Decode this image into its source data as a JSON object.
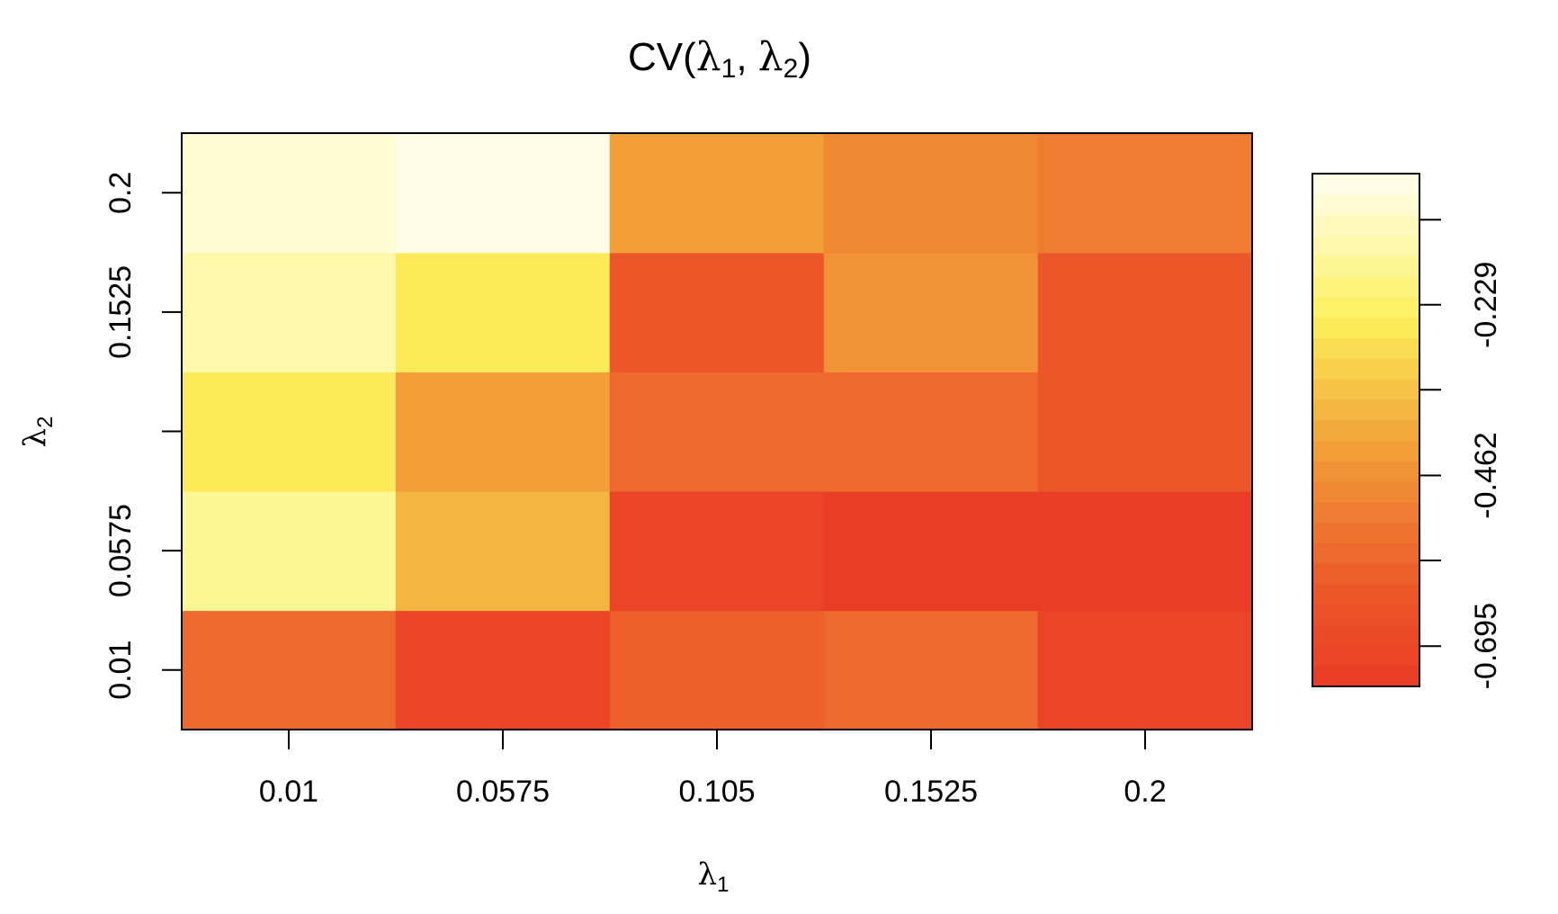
{
  "chart_data": {
    "type": "heatmap",
    "title": {
      "prefix": "CV(",
      "lambda_symbol": "λ",
      "sub1": "1",
      "separator": ", ",
      "sub2": "2",
      "suffix": ")"
    },
    "xlabel": {
      "symbol": "λ",
      "sub": "1"
    },
    "ylabel": {
      "symbol": "λ",
      "sub": "2"
    },
    "x_values": [
      0.01,
      0.0575,
      0.105,
      0.1525,
      0.2
    ],
    "x_tick_labels": [
      "0.01",
      "0.0575",
      "0.105",
      "0.1525",
      "0.2"
    ],
    "y_values": [
      0.01,
      0.0575,
      0.105,
      0.1525,
      0.2
    ],
    "y_tick_labels": [
      "0.01",
      "0.0575",
      "",
      "0.1525",
      "0.2"
    ],
    "z": [
      [
        -0.56,
        -0.71,
        -0.6,
        -0.58,
        -0.71
      ],
      [
        -0.17,
        -0.38,
        -0.7,
        -0.75,
        -0.75
      ],
      [
        -0.25,
        -0.43,
        -0.57,
        -0.57,
        -0.62
      ],
      [
        -0.15,
        -0.26,
        -0.62,
        -0.47,
        -0.62
      ],
      [
        -0.1,
        -0.05,
        -0.43,
        -0.48,
        -0.52
      ]
    ],
    "z_note": "z[i][j] = value at lambda2 = y_values[i], lambda1 = x_values[j]",
    "zlim": [
      -0.75,
      -0.05
    ],
    "colorbar": {
      "tick_values": [
        -0.113,
        -0.229,
        -0.345,
        -0.462,
        -0.578,
        -0.695
      ],
      "tick_labels": [
        "",
        "-0.229",
        "",
        "-0.462",
        "",
        "-0.695"
      ],
      "n_levels": 25,
      "palette": "heat",
      "color_low": "#EA3A24",
      "color_high": "#FFFEF0"
    },
    "grid": false
  }
}
